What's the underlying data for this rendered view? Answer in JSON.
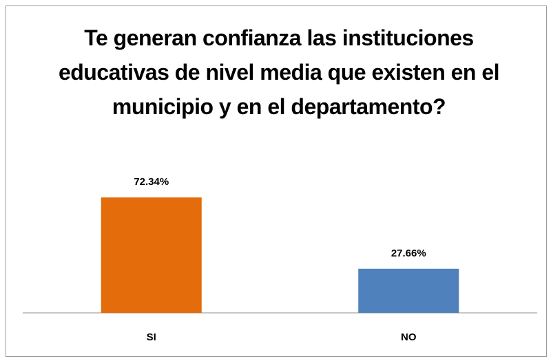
{
  "chart_data": {
    "type": "bar",
    "title": "Te generan confianza las instituciones educativas de nivel media que existen en el municipio y en el departamento?",
    "categories": [
      "SI",
      "NO"
    ],
    "values": [
      72.34,
      27.66
    ],
    "value_labels": [
      "72.34%",
      "27.66%"
    ],
    "colors": [
      "#e46c0a",
      "#4f81bd"
    ]
  }
}
